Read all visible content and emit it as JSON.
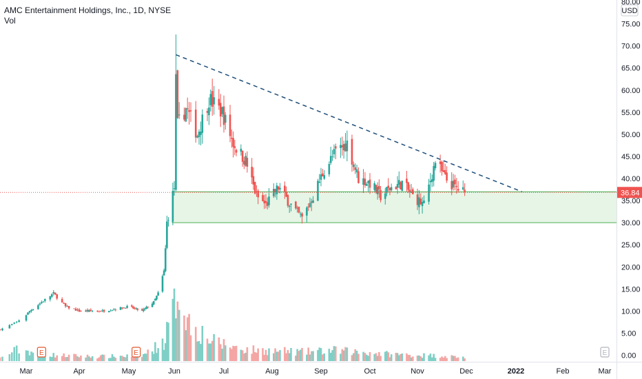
{
  "header": {
    "title": "AMC Entertainment Holdings, Inc., 1D, NYSE",
    "volume_label": "Vol"
  },
  "currency": "USD",
  "last_price_label": "36.84",
  "colors": {
    "up": "#26a69a",
    "down": "#ef5350",
    "vol_up": "#7fcfc6",
    "vol_down": "#f4a6a4",
    "trendline": "#1e4d78",
    "zone_fill": "#e6f5e6",
    "zone_border": "#4caf50",
    "price_line": "#ef5350"
  },
  "earnings_marker_label": "E",
  "chart_data": {
    "type": "candlestick",
    "title": "AMC Entertainment Holdings, Inc., 1D, NYSE",
    "y_axis": {
      "unit": "USD",
      "ylim": [
        0,
        80
      ],
      "ticks": [
        "80.00",
        "75.00",
        "70.00",
        "65.00",
        "60.00",
        "55.00",
        "50.00",
        "45.00",
        "40.00",
        "35.00",
        "30.00",
        "25.00",
        "20.00",
        "15.00",
        "10.00",
        "5.00",
        "0.00"
      ]
    },
    "x_axis": {
      "tick_labels": [
        "Mar",
        "Apr",
        "May",
        "Jun",
        "Jul",
        "Aug",
        "Sep",
        "Oct",
        "Nov",
        "Dec",
        "2022",
        "Feb",
        "Mar"
      ],
      "bold_labels": [
        "2022"
      ]
    },
    "last_price": 36.84,
    "support_zone": {
      "top": 37.0,
      "bottom": 30.0
    },
    "trendline": {
      "start": {
        "date": "2021-06-02",
        "price": 68.0
      },
      "end": {
        "date": "2022-01-05",
        "price": 37.0
      }
    },
    "earnings_dates": [
      "2021-03-10",
      "2021-05-06",
      "2022-03-01"
    ],
    "price_path": [
      [
        "2021-02-18",
        5.8
      ],
      [
        "2021-02-25",
        7.5
      ],
      [
        "2021-03-03",
        10.0
      ],
      [
        "2021-03-10",
        12.0
      ],
      [
        "2021-03-17",
        14.0
      ],
      [
        "2021-03-24",
        11.0
      ],
      [
        "2021-04-01",
        10.0
      ],
      [
        "2021-04-15",
        10.0
      ],
      [
        "2021-05-01",
        11.0
      ],
      [
        "2021-05-10",
        10.0
      ],
      [
        "2021-05-18",
        12.0
      ],
      [
        "2021-05-21",
        14.0
      ],
      [
        "2021-05-25",
        19.0
      ],
      [
        "2021-05-26",
        24.0
      ],
      [
        "2021-05-27",
        30.0
      ],
      [
        "2021-06-01",
        38.0
      ],
      [
        "2021-06-02",
        62.0
      ],
      [
        "2021-06-03",
        52.0
      ],
      [
        "2021-06-08",
        56.0
      ],
      [
        "2021-06-15",
        50.0
      ],
      [
        "2021-06-22",
        58.0
      ],
      [
        "2021-06-30",
        55.0
      ],
      [
        "2021-07-07",
        48.0
      ],
      [
        "2021-07-15",
        44.0
      ],
      [
        "2021-07-22",
        36.0
      ],
      [
        "2021-07-28",
        34.0
      ],
      [
        "2021-08-05",
        38.0
      ],
      [
        "2021-08-15",
        33.0
      ],
      [
        "2021-08-20",
        31.0
      ],
      [
        "2021-08-27",
        36.0
      ],
      [
        "2021-09-03",
        42.0
      ],
      [
        "2021-09-10",
        46.0
      ],
      [
        "2021-09-17",
        48.0
      ],
      [
        "2021-09-24",
        40.0
      ],
      [
        "2021-10-01",
        39.0
      ],
      [
        "2021-10-08",
        36.0
      ],
      [
        "2021-10-15",
        38.0
      ],
      [
        "2021-10-22",
        39.0
      ],
      [
        "2021-10-29",
        36.0
      ],
      [
        "2021-11-05",
        34.0
      ],
      [
        "2021-11-12",
        44.0
      ],
      [
        "2021-11-18",
        40.0
      ],
      [
        "2021-11-24",
        38.0
      ],
      [
        "2021-11-30",
        36.84
      ]
    ],
    "volume_path": [
      [
        "2021-02-18",
        0.4
      ],
      [
        "2021-02-25",
        1.5
      ],
      [
        "2021-03-05",
        1.2
      ],
      [
        "2021-03-15",
        0.8
      ],
      [
        "2021-04-10",
        0.6
      ],
      [
        "2021-05-10",
        0.7
      ],
      [
        "2021-05-25",
        2.5
      ],
      [
        "2021-06-01",
        7.0
      ],
      [
        "2021-06-03",
        10.0
      ],
      [
        "2021-06-10",
        5.0
      ],
      [
        "2021-06-25",
        2.5
      ],
      [
        "2021-07-15",
        1.5
      ],
      [
        "2021-08-20",
        1.2
      ],
      [
        "2021-09-10",
        1.4
      ],
      [
        "2021-10-15",
        0.9
      ],
      [
        "2021-11-15",
        0.7
      ],
      [
        "2021-11-30",
        0.5
      ]
    ]
  }
}
